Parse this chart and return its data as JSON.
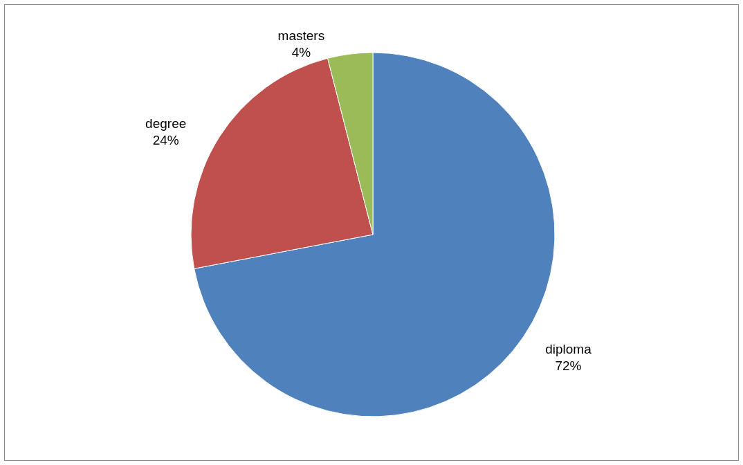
{
  "chart_data": {
    "type": "pie",
    "categories": [
      "diploma",
      "degree",
      "masters"
    ],
    "values": [
      72,
      24,
      4
    ],
    "colors": [
      "#4f81bd",
      "#c0504d",
      "#9bbb59"
    ],
    "value_labels": [
      "72%",
      "24%",
      "4%"
    ],
    "legend": false
  }
}
